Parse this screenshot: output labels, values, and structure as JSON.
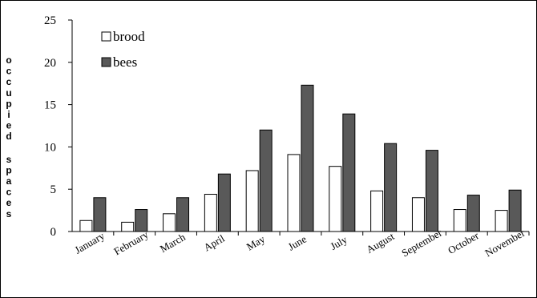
{
  "chart_data": {
    "type": "bar",
    "title": "",
    "xlabel": "",
    "ylabel": "occupied spaces",
    "ylim": [
      0,
      25
    ],
    "yticks": [
      0,
      5,
      10,
      15,
      20,
      25
    ],
    "categories": [
      "January",
      "February",
      "March",
      "April",
      "May",
      "June",
      "July",
      "August",
      "September",
      "October",
      "November"
    ],
    "series": [
      {
        "name": "brood",
        "color": "#ffffff",
        "values": [
          1.3,
          1.1,
          2.1,
          4.4,
          7.2,
          9.1,
          7.7,
          4.8,
          4.0,
          2.6,
          2.5
        ]
      },
      {
        "name": "bees",
        "color": "#595959",
        "values": [
          4.0,
          2.6,
          4.0,
          6.8,
          12.0,
          17.3,
          13.9,
          10.4,
          9.6,
          4.3,
          4.9
        ]
      }
    ],
    "grid": false,
    "legend_position": "top-left"
  }
}
